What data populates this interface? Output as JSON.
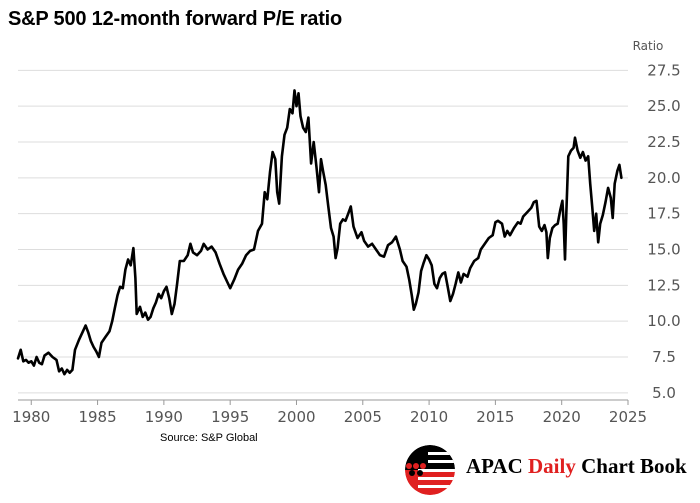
{
  "chart_data": {
    "type": "line",
    "title": "S&P 500 12-month forward P/E ratio",
    "ylabel": "Ratio",
    "xlim": [
      1979,
      2025
    ],
    "ylim": [
      4.5,
      28.5
    ],
    "yticks": [
      "5.0",
      "7.5",
      "10.0",
      "12.5",
      "15.0",
      "17.5",
      "20.0",
      "22.5",
      "25.0",
      "27.5"
    ],
    "xticks": [
      "1980",
      "1985",
      "1990",
      "1995",
      "2000",
      "2005",
      "2010",
      "2015",
      "2020",
      "2025"
    ],
    "y_axis_side": "right",
    "grid": "horizontal",
    "series": [
      {
        "color": "#000000",
        "points": [
          [
            1979.0,
            7.4
          ],
          [
            1979.2,
            8.0
          ],
          [
            1979.4,
            7.2
          ],
          [
            1979.6,
            7.3
          ],
          [
            1979.8,
            7.1
          ],
          [
            1980.0,
            7.2
          ],
          [
            1980.2,
            6.9
          ],
          [
            1980.4,
            7.5
          ],
          [
            1980.6,
            7.1
          ],
          [
            1980.8,
            7.0
          ],
          [
            1981.0,
            7.6
          ],
          [
            1981.3,
            7.8
          ],
          [
            1981.6,
            7.5
          ],
          [
            1981.9,
            7.3
          ],
          [
            1982.1,
            6.5
          ],
          [
            1982.3,
            6.7
          ],
          [
            1982.5,
            6.3
          ],
          [
            1982.7,
            6.6
          ],
          [
            1982.9,
            6.4
          ],
          [
            1983.1,
            6.6
          ],
          [
            1983.3,
            8.0
          ],
          [
            1983.6,
            8.7
          ],
          [
            1983.9,
            9.3
          ],
          [
            1984.1,
            9.7
          ],
          [
            1984.3,
            9.2
          ],
          [
            1984.5,
            8.6
          ],
          [
            1984.7,
            8.2
          ],
          [
            1984.9,
            7.9
          ],
          [
            1985.1,
            7.5
          ],
          [
            1985.3,
            8.5
          ],
          [
            1985.6,
            8.9
          ],
          [
            1985.9,
            9.3
          ],
          [
            1986.1,
            10.0
          ],
          [
            1986.3,
            10.9
          ],
          [
            1986.5,
            11.8
          ],
          [
            1986.7,
            12.4
          ],
          [
            1986.9,
            12.3
          ],
          [
            1987.1,
            13.6
          ],
          [
            1987.3,
            14.3
          ],
          [
            1987.5,
            13.9
          ],
          [
            1987.7,
            15.1
          ],
          [
            1987.85,
            13.0
          ],
          [
            1987.95,
            10.5
          ],
          [
            1988.2,
            11.0
          ],
          [
            1988.4,
            10.3
          ],
          [
            1988.6,
            10.6
          ],
          [
            1988.8,
            10.1
          ],
          [
            1989.0,
            10.3
          ],
          [
            1989.2,
            10.9
          ],
          [
            1989.4,
            11.3
          ],
          [
            1989.6,
            11.9
          ],
          [
            1989.8,
            11.6
          ],
          [
            1990.0,
            12.1
          ],
          [
            1990.2,
            12.4
          ],
          [
            1990.4,
            11.6
          ],
          [
            1990.6,
            10.5
          ],
          [
            1990.8,
            11.2
          ],
          [
            1991.0,
            12.6
          ],
          [
            1991.2,
            14.2
          ],
          [
            1991.5,
            14.2
          ],
          [
            1991.8,
            14.6
          ],
          [
            1992.0,
            15.4
          ],
          [
            1992.2,
            14.8
          ],
          [
            1992.5,
            14.6
          ],
          [
            1992.8,
            14.9
          ],
          [
            1993.0,
            15.4
          ],
          [
            1993.3,
            15.0
          ],
          [
            1993.6,
            15.2
          ],
          [
            1993.9,
            14.8
          ],
          [
            1994.2,
            14.0
          ],
          [
            1994.5,
            13.3
          ],
          [
            1994.8,
            12.7
          ],
          [
            1995.0,
            12.3
          ],
          [
            1995.3,
            12.9
          ],
          [
            1995.6,
            13.6
          ],
          [
            1995.9,
            14.0
          ],
          [
            1996.2,
            14.6
          ],
          [
            1996.5,
            14.9
          ],
          [
            1996.8,
            15.0
          ],
          [
            1997.1,
            16.3
          ],
          [
            1997.4,
            16.8
          ],
          [
            1997.6,
            19.0
          ],
          [
            1997.8,
            18.5
          ],
          [
            1998.0,
            20.4
          ],
          [
            1998.2,
            21.8
          ],
          [
            1998.4,
            21.3
          ],
          [
            1998.55,
            19.0
          ],
          [
            1998.7,
            18.2
          ],
          [
            1998.9,
            21.5
          ],
          [
            1999.1,
            23.0
          ],
          [
            1999.3,
            23.5
          ],
          [
            1999.5,
            24.8
          ],
          [
            1999.7,
            24.5
          ],
          [
            1999.85,
            26.1
          ],
          [
            2000.0,
            25.0
          ],
          [
            2000.15,
            25.9
          ],
          [
            2000.3,
            24.3
          ],
          [
            2000.5,
            23.5
          ],
          [
            2000.7,
            23.2
          ],
          [
            2000.9,
            24.2
          ],
          [
            2001.1,
            21.0
          ],
          [
            2001.3,
            22.5
          ],
          [
            2001.5,
            20.8
          ],
          [
            2001.7,
            19.0
          ],
          [
            2001.85,
            21.3
          ],
          [
            2002.0,
            20.5
          ],
          [
            2002.2,
            19.5
          ],
          [
            2002.4,
            18.0
          ],
          [
            2002.6,
            16.5
          ],
          [
            2002.8,
            15.9
          ],
          [
            2002.95,
            14.4
          ],
          [
            2003.1,
            15.1
          ],
          [
            2003.3,
            16.8
          ],
          [
            2003.5,
            17.1
          ],
          [
            2003.7,
            17.0
          ],
          [
            2003.9,
            17.5
          ],
          [
            2004.1,
            18.0
          ],
          [
            2004.3,
            16.6
          ],
          [
            2004.6,
            15.8
          ],
          [
            2004.9,
            16.2
          ],
          [
            2005.1,
            15.6
          ],
          [
            2005.4,
            15.2
          ],
          [
            2005.7,
            15.4
          ],
          [
            2006.0,
            15.0
          ],
          [
            2006.3,
            14.6
          ],
          [
            2006.6,
            14.5
          ],
          [
            2006.9,
            15.3
          ],
          [
            2007.2,
            15.5
          ],
          [
            2007.5,
            15.9
          ],
          [
            2007.8,
            15.0
          ],
          [
            2008.0,
            14.2
          ],
          [
            2008.3,
            13.8
          ],
          [
            2008.5,
            12.9
          ],
          [
            2008.7,
            11.8
          ],
          [
            2008.85,
            10.8
          ],
          [
            2009.0,
            11.2
          ],
          [
            2009.2,
            12.0
          ],
          [
            2009.4,
            13.5
          ],
          [
            2009.6,
            14.1
          ],
          [
            2009.8,
            14.6
          ],
          [
            2010.0,
            14.3
          ],
          [
            2010.2,
            13.9
          ],
          [
            2010.4,
            12.6
          ],
          [
            2010.6,
            12.3
          ],
          [
            2010.8,
            13.0
          ],
          [
            2011.0,
            13.3
          ],
          [
            2011.2,
            13.4
          ],
          [
            2011.4,
            12.4
          ],
          [
            2011.6,
            11.4
          ],
          [
            2011.8,
            11.9
          ],
          [
            2012.0,
            12.6
          ],
          [
            2012.2,
            13.4
          ],
          [
            2012.4,
            12.7
          ],
          [
            2012.6,
            13.3
          ],
          [
            2012.9,
            13.1
          ],
          [
            2013.1,
            13.7
          ],
          [
            2013.4,
            14.2
          ],
          [
            2013.7,
            14.4
          ],
          [
            2013.9,
            15.0
          ],
          [
            2014.2,
            15.4
          ],
          [
            2014.5,
            15.8
          ],
          [
            2014.8,
            16.0
          ],
          [
            2015.0,
            16.9
          ],
          [
            2015.2,
            17.0
          ],
          [
            2015.5,
            16.8
          ],
          [
            2015.7,
            15.9
          ],
          [
            2015.9,
            16.3
          ],
          [
            2016.1,
            16.0
          ],
          [
            2016.4,
            16.5
          ],
          [
            2016.7,
            16.9
          ],
          [
            2016.9,
            16.8
          ],
          [
            2017.1,
            17.3
          ],
          [
            2017.4,
            17.6
          ],
          [
            2017.7,
            17.9
          ],
          [
            2017.9,
            18.3
          ],
          [
            2018.1,
            18.4
          ],
          [
            2018.3,
            16.6
          ],
          [
            2018.5,
            16.3
          ],
          [
            2018.7,
            16.7
          ],
          [
            2018.85,
            16.2
          ],
          [
            2018.95,
            14.4
          ],
          [
            2019.1,
            15.8
          ],
          [
            2019.3,
            16.5
          ],
          [
            2019.5,
            16.7
          ],
          [
            2019.7,
            16.8
          ],
          [
            2019.9,
            17.8
          ],
          [
            2020.05,
            18.4
          ],
          [
            2020.15,
            16.8
          ],
          [
            2020.25,
            14.3
          ],
          [
            2020.35,
            17.5
          ],
          [
            2020.5,
            21.5
          ],
          [
            2020.7,
            21.9
          ],
          [
            2020.9,
            22.1
          ],
          [
            2021.0,
            22.8
          ],
          [
            2021.2,
            21.9
          ],
          [
            2021.4,
            21.4
          ],
          [
            2021.6,
            21.8
          ],
          [
            2021.8,
            21.2
          ],
          [
            2022.0,
            21.5
          ],
          [
            2022.15,
            19.6
          ],
          [
            2022.3,
            18.0
          ],
          [
            2022.45,
            16.3
          ],
          [
            2022.6,
            17.5
          ],
          [
            2022.75,
            15.5
          ],
          [
            2022.9,
            16.8
          ],
          [
            2023.1,
            17.4
          ],
          [
            2023.3,
            18.3
          ],
          [
            2023.5,
            19.3
          ],
          [
            2023.7,
            18.6
          ],
          [
            2023.85,
            17.2
          ],
          [
            2024.0,
            19.6
          ],
          [
            2024.2,
            20.5
          ],
          [
            2024.35,
            20.9
          ],
          [
            2024.5,
            20.0
          ]
        ]
      }
    ],
    "source": "Source: S&P Global"
  },
  "brand": {
    "name_prefix": "APAC ",
    "name_highlight": "Daily",
    "name_suffix": " Chart Book",
    "colors": {
      "red": "#e02020",
      "black": "#000000"
    }
  }
}
